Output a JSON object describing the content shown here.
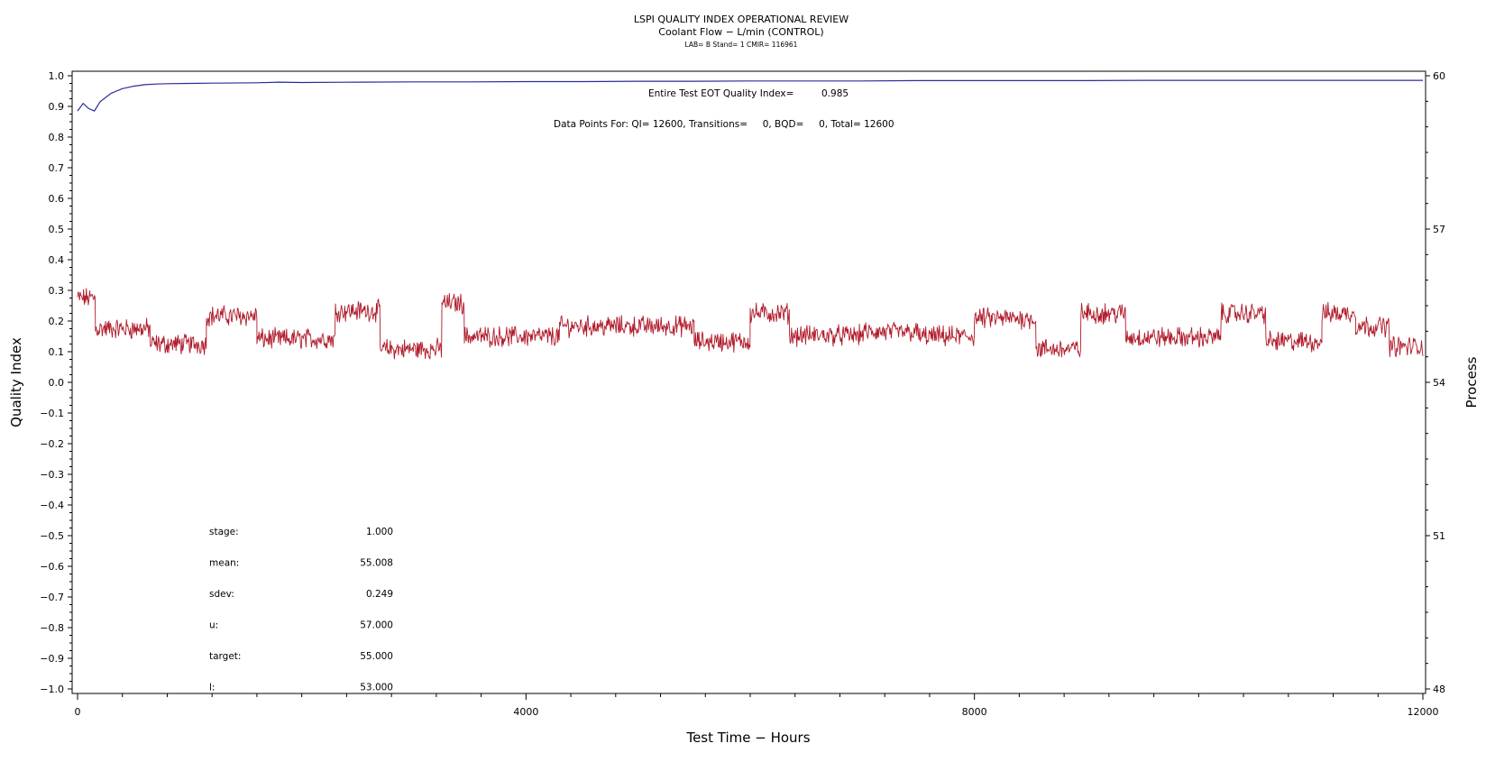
{
  "chart_data": {
    "type": "line",
    "title": "LSPI QUALITY INDEX OPERATIONAL REVIEW",
    "subtitle": "Coolant Flow − L/min (CONTROL)",
    "subtitle2": "LAB= B Stand= 1 CMIR= 116961",
    "xlabel": "Test Time − Hours",
    "ylabel": "Quality Index",
    "y2label": "Process",
    "xlim": [
      0,
      12000
    ],
    "ylim": [
      -1.0,
      1.0
    ],
    "y2lim": [
      48,
      60
    ],
    "x_ticks": [
      "0",
      "4000",
      "8000",
      "12000"
    ],
    "y_ticks": [
      "1.0",
      "0.9",
      "0.8",
      "0.7",
      "0.6",
      "0.5",
      "0.4",
      "0.3",
      "0.2",
      "0.1",
      "0.0",
      "−0.1",
      "−0.2",
      "−0.3",
      "−0.4",
      "−0.5",
      "−0.6",
      "−0.7",
      "−0.8",
      "−0.9",
      "−1.0"
    ],
    "y2_ticks": [
      "60",
      "57",
      "54",
      "51",
      "48"
    ],
    "annotations": {
      "eot_label": "Entire Test EOT Quality Index=",
      "eot_value": "0.985",
      "datapoints": "Data Points For: QI= 12600, Transitions=     0, BQD=     0, Total= 12600"
    },
    "stats": [
      {
        "label": "stage:",
        "value": "1.000"
      },
      {
        "label": "mean:",
        "value": "55.008"
      },
      {
        "label": "sdev:",
        "value": "0.249"
      },
      {
        "label": "u:",
        "value": "57.000"
      },
      {
        "label": "target:",
        "value": "55.000"
      },
      {
        "label": "l:",
        "value": "53.000"
      }
    ],
    "series": [
      {
        "axis": "left",
        "color": "#2b2b9c",
        "x": [
          0,
          50,
          100,
          150,
          200,
          300,
          400,
          500,
          600,
          700,
          800,
          1000,
          1200,
          1600,
          1800,
          2000,
          2500,
          3000,
          3500,
          4000,
          4500,
          5000,
          5500,
          6000,
          6500,
          7000,
          7500,
          8000,
          8500,
          9000,
          9500,
          10000,
          10500,
          11000,
          11500,
          11800,
          12000
        ],
        "y": [
          0.885,
          0.91,
          0.893,
          0.885,
          0.915,
          0.943,
          0.958,
          0.966,
          0.971,
          0.973,
          0.974,
          0.975,
          0.976,
          0.977,
          0.979,
          0.978,
          0.979,
          0.98,
          0.98,
          0.981,
          0.981,
          0.982,
          0.982,
          0.983,
          0.983,
          0.983,
          0.984,
          0.984,
          0.984,
          0.984,
          0.985,
          0.985,
          0.985,
          0.985,
          0.985,
          0.985,
          0.985
        ]
      },
      {
        "axis": "right",
        "color": "#b01a2a",
        "segments": [
          {
            "x0": 0,
            "x1": 160,
            "y": 55.65
          },
          {
            "x0": 160,
            "x1": 650,
            "y": 55.05
          },
          {
            "x0": 650,
            "x1": 1150,
            "y": 54.75
          },
          {
            "x0": 1150,
            "x1": 1600,
            "y": 55.3
          },
          {
            "x0": 1600,
            "x1": 2300,
            "y": 54.85
          },
          {
            "x0": 2300,
            "x1": 2700,
            "y": 55.4
          },
          {
            "x0": 2700,
            "x1": 3250,
            "y": 54.65
          },
          {
            "x0": 3250,
            "x1": 3450,
            "y": 55.55
          },
          {
            "x0": 3450,
            "x1": 4300,
            "y": 54.9
          },
          {
            "x0": 4300,
            "x1": 5500,
            "y": 55.1
          },
          {
            "x0": 5500,
            "x1": 6000,
            "y": 54.8
          },
          {
            "x0": 6000,
            "x1": 6350,
            "y": 55.35
          },
          {
            "x0": 6350,
            "x1": 7000,
            "y": 54.92
          },
          {
            "x0": 7000,
            "x1": 7500,
            "y": 54.98
          },
          {
            "x0": 7500,
            "x1": 8000,
            "y": 54.9
          },
          {
            "x0": 8000,
            "x1": 8550,
            "y": 55.25
          },
          {
            "x0": 8550,
            "x1": 8950,
            "y": 54.65
          },
          {
            "x0": 8950,
            "x1": 9350,
            "y": 55.35
          },
          {
            "x0": 9350,
            "x1": 10200,
            "y": 54.88
          },
          {
            "x0": 10200,
            "x1": 10600,
            "y": 55.35
          },
          {
            "x0": 10600,
            "x1": 11100,
            "y": 54.8
          },
          {
            "x0": 11100,
            "x1": 11400,
            "y": 55.35
          },
          {
            "x0": 11400,
            "x1": 11700,
            "y": 55.1
          },
          {
            "x0": 11700,
            "x1": 12000,
            "y": 54.7
          }
        ]
      }
    ]
  }
}
